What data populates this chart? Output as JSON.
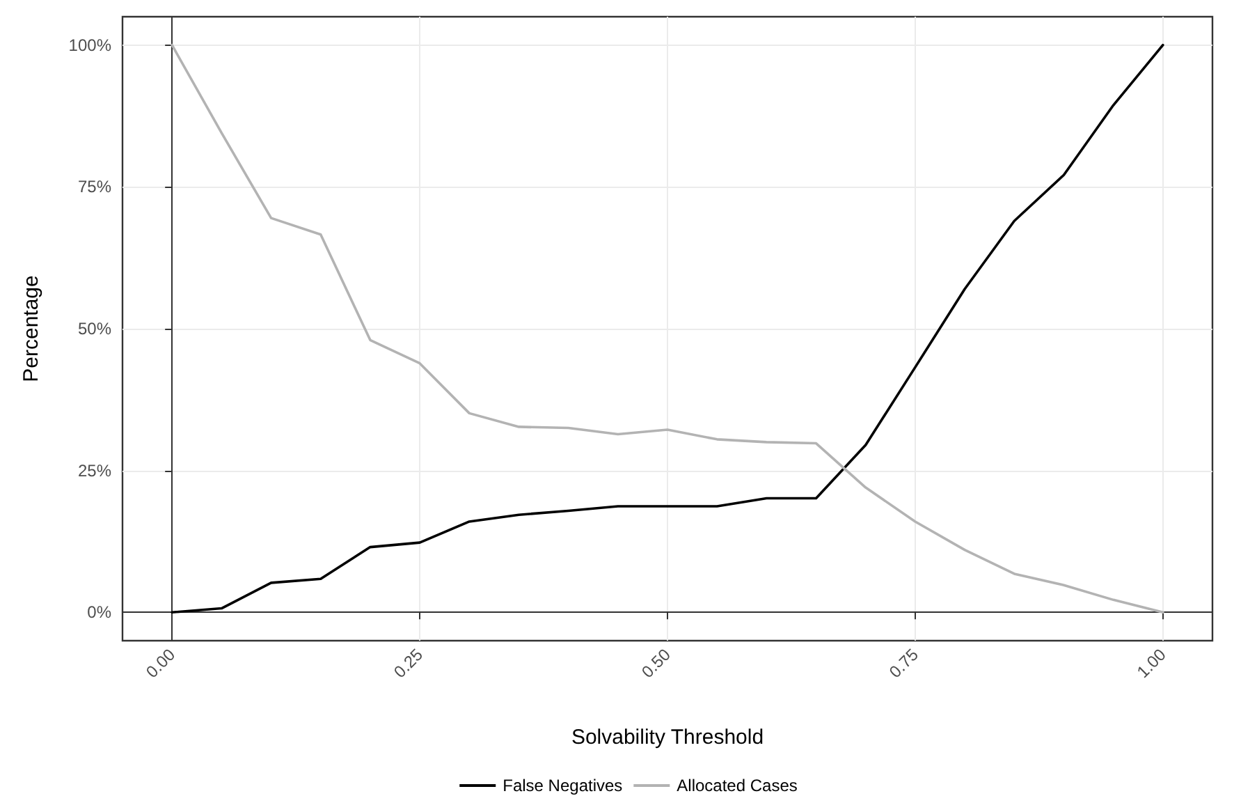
{
  "chart_data": {
    "type": "line",
    "xlabel": "Solvability Threshold",
    "ylabel": "Percentage",
    "x": [
      0,
      0.05,
      0.1,
      0.15,
      0.2,
      0.25,
      0.3,
      0.35,
      0.4,
      0.45,
      0.5,
      0.55,
      0.6,
      0.65,
      0.7,
      0.75,
      0.8,
      0.85,
      0.9,
      0.95,
      1
    ],
    "series": [
      {
        "name": "False Negatives",
        "color": "#000000",
        "values": [
          0,
          0.7,
          5.2,
          5.9,
          11.5,
          12.3,
          16,
          17.2,
          17.9,
          18.7,
          18.7,
          18.7,
          20.1,
          20.1,
          29.5,
          43.2,
          57,
          69,
          77.1,
          89.4,
          100
        ]
      },
      {
        "name": "Allocated Cases",
        "color": "#b3b3b3",
        "values": [
          100,
          84.5,
          69.5,
          66.6,
          48,
          43.9,
          35.1,
          32.7,
          32.5,
          31.4,
          32.2,
          30.5,
          30,
          29.8,
          22,
          16,
          11,
          6.8,
          4.8,
          2.2,
          0
        ]
      }
    ],
    "xlim": [
      -0.05,
      1.05
    ],
    "xticks": [
      {
        "value": 0,
        "label": "0.00"
      },
      {
        "value": 0.25,
        "label": "0.25"
      },
      {
        "value": 0.5,
        "label": "0.50"
      },
      {
        "value": 0.75,
        "label": "0.75"
      },
      {
        "value": 1,
        "label": "1.00"
      }
    ],
    "ylim": [
      -5,
      105
    ],
    "yticks": [
      {
        "value": 0,
        "label": "0%"
      },
      {
        "value": 25,
        "label": "25%"
      },
      {
        "value": 50,
        "label": "50%"
      },
      {
        "value": 75,
        "label": "75%"
      },
      {
        "value": 100,
        "label": "100%"
      }
    ],
    "grid": true,
    "legend": "bottom",
    "marker": "none",
    "line_style": "solid"
  }
}
